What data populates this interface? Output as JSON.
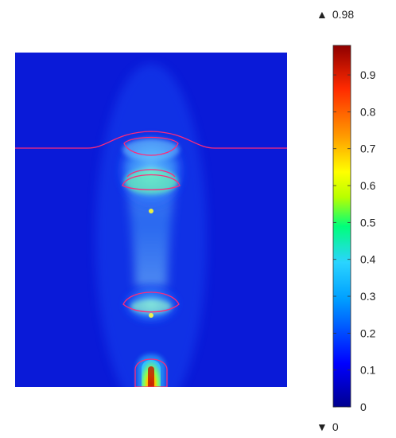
{
  "chart_data": {
    "type": "heatmap",
    "colormap": "rainbow",
    "colors": [
      "#00008f",
      "#0000ff",
      "#00a0ff",
      "#2ad4ff",
      "#00ff7a",
      "#b8ff00",
      "#ffff00",
      "#ff9a00",
      "#ff2a00",
      "#8f0000"
    ],
    "background_color": "#0a1ad8",
    "contour_color": "#ff2a7a",
    "colorbar": {
      "min": 0,
      "max": 0.98,
      "ticks": [
        0,
        0.1,
        0.2,
        0.3,
        0.4,
        0.5,
        0.6,
        0.7,
        0.8,
        0.9
      ],
      "tick_labels": [
        "0",
        "0.1",
        "0.2",
        "0.3",
        "0.4",
        "0.5",
        "0.6",
        "0.7",
        "0.8",
        "0.9"
      ],
      "max_label": "0.98",
      "min_label": "0",
      "max_symbol": "▲",
      "min_symbol": "▼"
    }
  }
}
